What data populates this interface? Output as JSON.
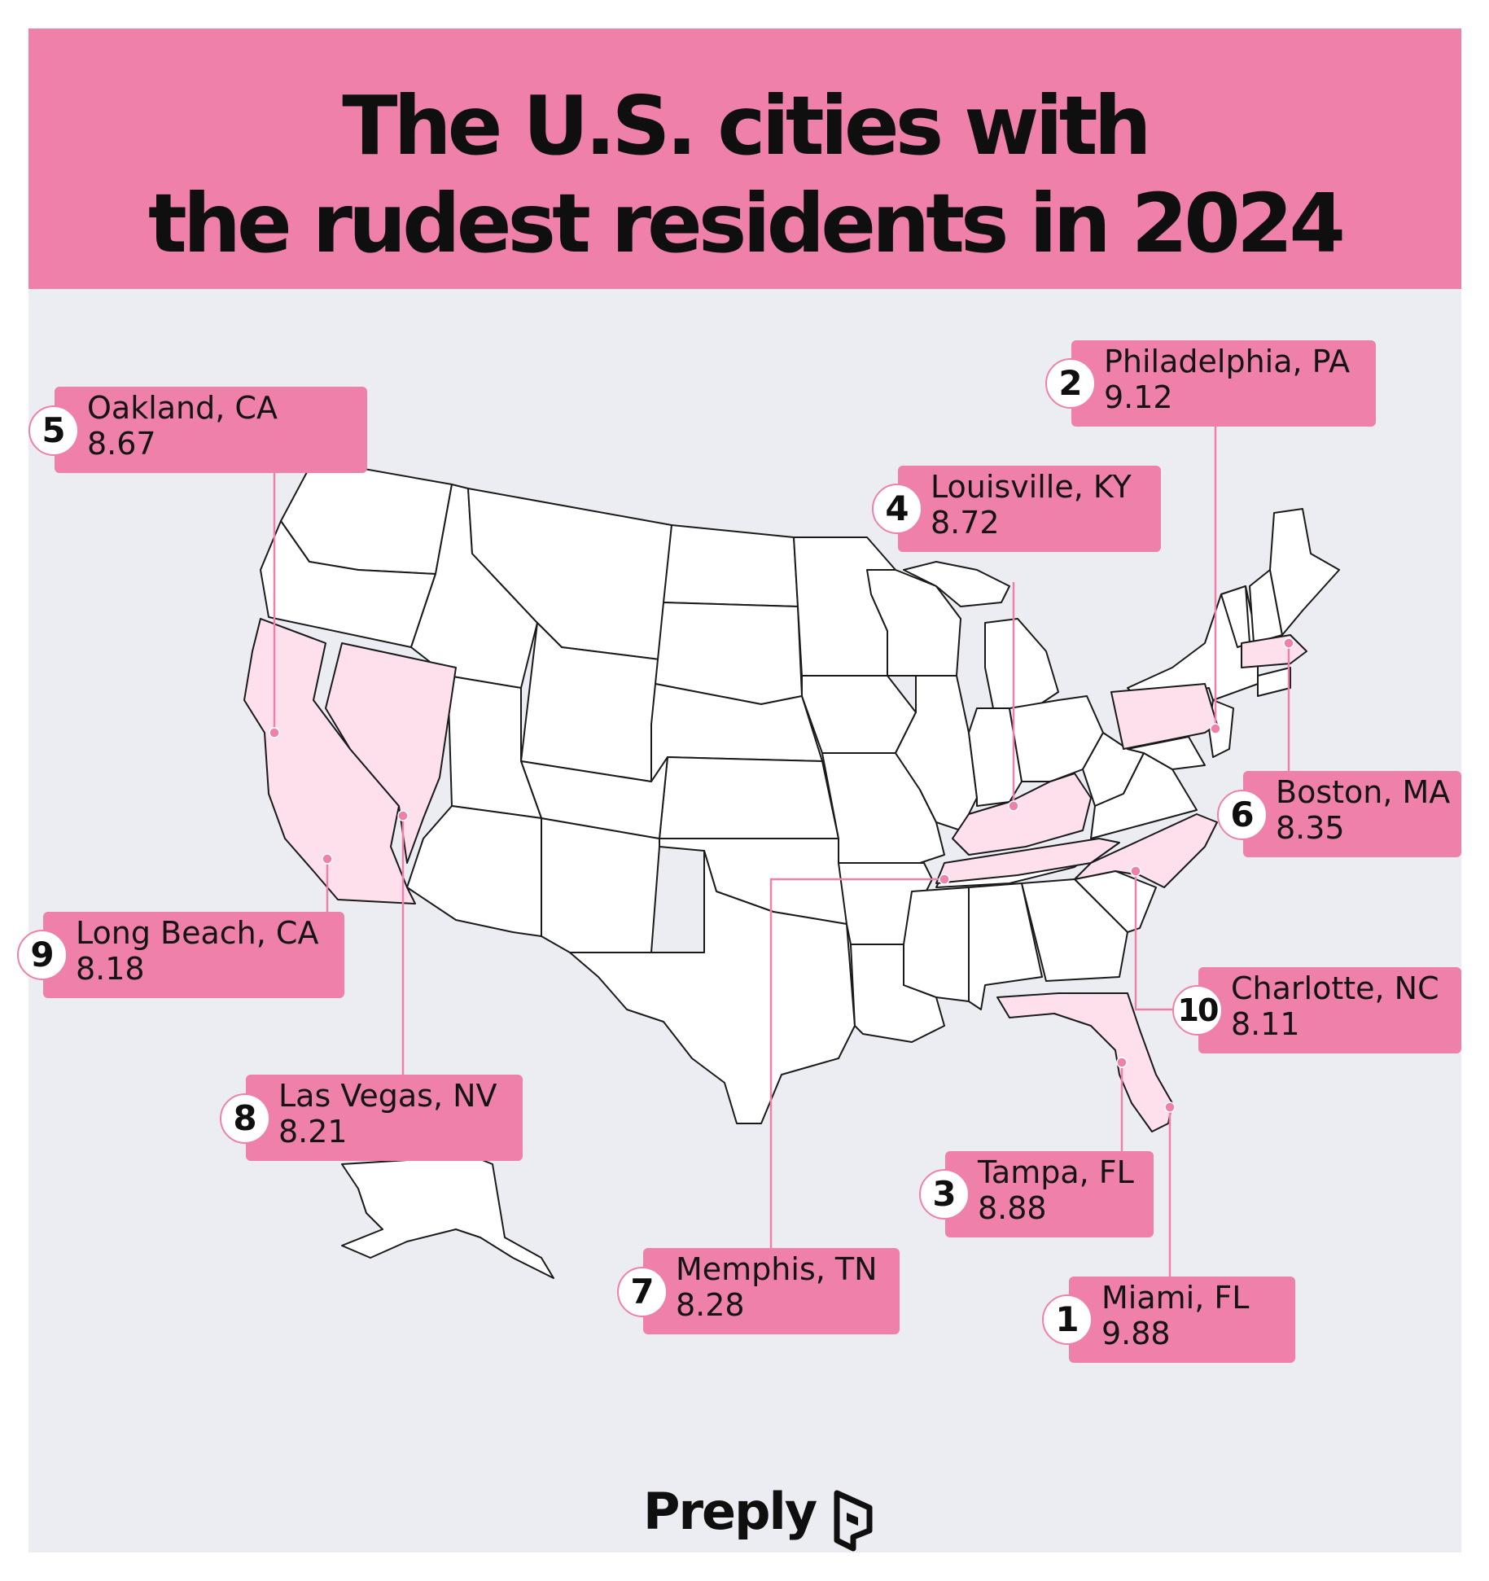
{
  "title": {
    "line1": "The U.S. cities with",
    "line2": "the rudest residents in 2024"
  },
  "brand": {
    "name": "Preply",
    "icon": "preply-logo-icon"
  },
  "colors": {
    "header": "#ef80a9",
    "label": "#ef80a9",
    "highlight_state": "#fde0eb",
    "background": "#ecedf2",
    "state_fill": "#ffffff",
    "state_stroke": "#1a1a1a"
  },
  "highlighted_states": [
    "California",
    "Nevada",
    "Kentucky",
    "Tennessee",
    "North Carolina",
    "Pennsylvania",
    "Massachusetts",
    "Florida"
  ],
  "cities": [
    {
      "rank": "1",
      "city": "Miami, FL",
      "score": "9.88"
    },
    {
      "rank": "2",
      "city": "Philadelphia, PA",
      "score": "9.12"
    },
    {
      "rank": "3",
      "city": "Tampa, FL",
      "score": "8.88"
    },
    {
      "rank": "4",
      "city": "Louisville, KY",
      "score": "8.72"
    },
    {
      "rank": "5",
      "city": "Oakland, CA",
      "score": "8.67"
    },
    {
      "rank": "6",
      "city": "Boston, MA",
      "score": "8.35"
    },
    {
      "rank": "7",
      "city": "Memphis, TN",
      "score": "8.28"
    },
    {
      "rank": "8",
      "city": "Las Vegas, NV",
      "score": "8.21"
    },
    {
      "rank": "9",
      "city": "Long Beach, CA",
      "score": "8.18"
    },
    {
      "rank": "10",
      "city": "Charlotte, NC",
      "score": "8.11"
    }
  ]
}
